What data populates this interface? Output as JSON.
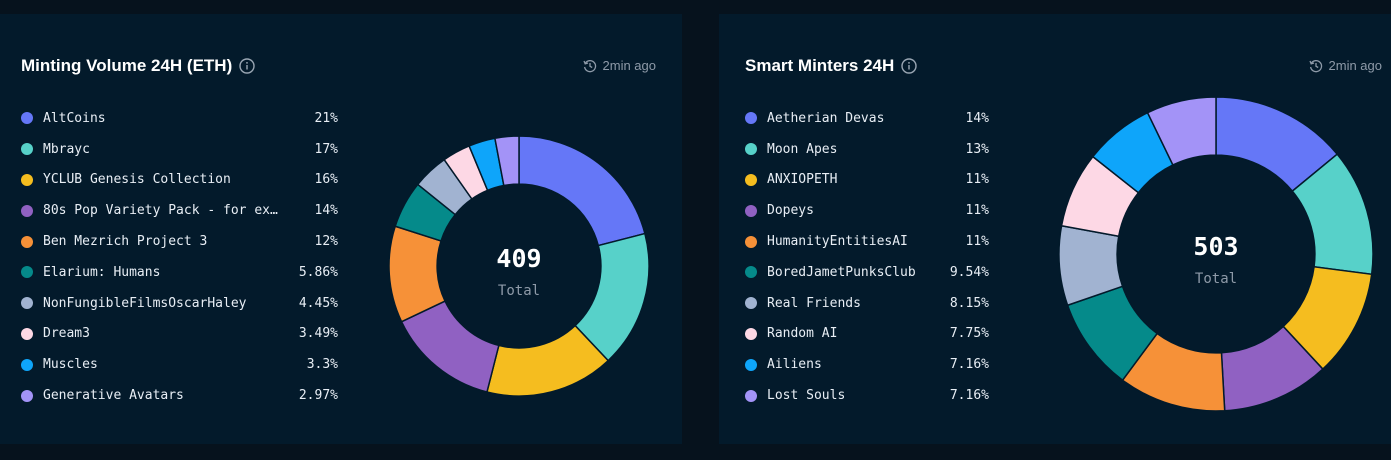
{
  "cards": [
    {
      "title": "Minting Volume 24H (ETH)",
      "updated": "2min ago",
      "chart_data": {
        "type": "pie",
        "total": "409",
        "total_label": "Total",
        "categories": [
          "AltCoins",
          "Mbrayc",
          "YCLUB Genesis Collection",
          "80s Pop Variety Pack - for ex…",
          "Ben Mezrich Project 3",
          "Elarium: Humans",
          "NonFungibleFilmsOscarHaley",
          "Dream3",
          "Muscles",
          "Generative Avatars"
        ],
        "values": [
          21,
          17,
          16,
          14,
          12,
          5.86,
          4.45,
          3.49,
          3.3,
          2.97
        ],
        "labels": [
          "21%",
          "17%",
          "16%",
          "14%",
          "12%",
          "5.86%",
          "4.45%",
          "3.49%",
          "3.3%",
          "2.97%"
        ],
        "colors": [
          "#6577f7",
          "#57d1c9",
          "#f5bd1f",
          "#9061c2",
          "#f69138",
          "#058a8a",
          "#a1b3d1",
          "#fdd8e5",
          "#0ea5fa",
          "#a393f7"
        ]
      }
    },
    {
      "title": "Smart Minters 24H",
      "updated": "2min ago",
      "chart_data": {
        "type": "pie",
        "total": "503",
        "total_label": "Total",
        "categories": [
          "Aetherian Devas",
          "Moon Apes",
          "ANXIOPETH",
          "Dopeys",
          "HumanityEntitiesAI",
          "BoredJametPunksClub",
          "Real Friends",
          "Random AI",
          "Ailiens",
          "Lost Souls"
        ],
        "values": [
          14,
          13,
          11,
          11,
          11,
          9.54,
          8.15,
          7.75,
          7.16,
          7.16
        ],
        "labels": [
          "14%",
          "13%",
          "11%",
          "11%",
          "11%",
          "9.54%",
          "8.15%",
          "7.75%",
          "7.16%",
          "7.16%"
        ],
        "colors": [
          "#6577f7",
          "#57d1c9",
          "#f5bd1f",
          "#9061c2",
          "#f69138",
          "#058a8a",
          "#a1b3d1",
          "#fdd8e5",
          "#0ea5fa",
          "#a393f7"
        ]
      }
    }
  ],
  "icons": {
    "info": "info-circle-icon",
    "clock": "clock-refresh-icon"
  }
}
